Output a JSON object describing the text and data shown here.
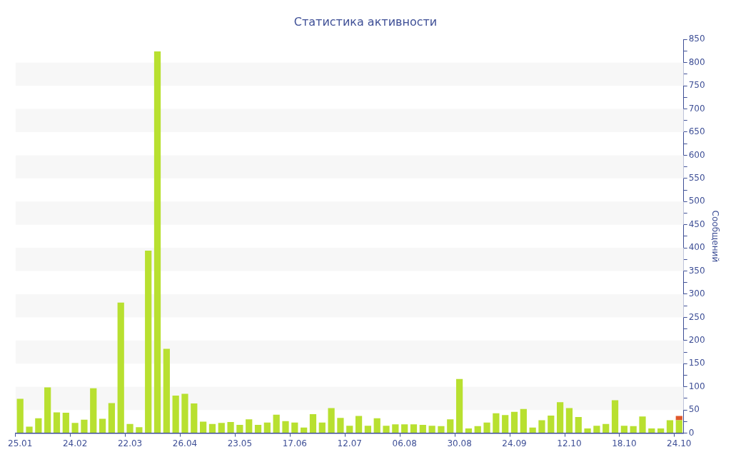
{
  "chart_data": {
    "type": "bar",
    "title": "Статистика активности",
    "ylabel": "Сообщений",
    "stacked": true,
    "legend": false,
    "bands": [
      {
        "axis": "y",
        "from": 50,
        "to": 100,
        "color": "#f7f7f7"
      },
      {
        "axis": "y",
        "from": 150,
        "to": 200,
        "color": "#f7f7f7"
      },
      {
        "axis": "y",
        "from": 250,
        "to": 300,
        "color": "#f7f7f7"
      },
      {
        "axis": "y",
        "from": 350,
        "to": 400,
        "color": "#f7f7f7"
      },
      {
        "axis": "y",
        "from": 450,
        "to": 500,
        "color": "#f7f7f7"
      },
      {
        "axis": "y",
        "from": 550,
        "to": 600,
        "color": "#f7f7f7"
      },
      {
        "axis": "y",
        "from": 650,
        "to": 700,
        "color": "#f7f7f7"
      },
      {
        "axis": "y",
        "from": 750,
        "to": 800,
        "color": "#f7f7f7"
      }
    ],
    "categories": [
      "25.01",
      null,
      null,
      null,
      null,
      null,
      "24.02",
      null,
      null,
      null,
      null,
      null,
      "22.03",
      null,
      null,
      null,
      null,
      null,
      "26.04",
      null,
      null,
      null,
      null,
      null,
      "23.05",
      null,
      null,
      null,
      null,
      null,
      "17.06",
      null,
      null,
      null,
      null,
      null,
      "12.07",
      null,
      null,
      null,
      null,
      null,
      "06.08",
      null,
      null,
      null,
      null,
      null,
      "30.08",
      null,
      null,
      null,
      null,
      null,
      "24.09",
      null,
      null,
      null,
      null,
      null,
      "12.10",
      null,
      null,
      null,
      null,
      null,
      "18.10",
      null,
      null,
      null,
      null,
      null,
      "24.10"
    ],
    "ylim": [
      0,
      850
    ],
    "yticks": [
      0,
      {
        "value": 25,
        "label": null
      },
      50,
      {
        "value": 75,
        "label": null
      },
      100,
      {
        "value": 125,
        "label": null
      },
      150,
      {
        "value": 175,
        "label": null
      },
      200,
      {
        "value": 225,
        "label": null
      },
      250,
      {
        "value": 275,
        "label": null
      },
      300,
      {
        "value": 325,
        "label": null
      },
      350,
      {
        "value": 375,
        "label": null
      },
      400,
      {
        "value": 425,
        "label": null
      },
      450,
      {
        "value": 475,
        "label": null
      },
      500,
      {
        "value": 525,
        "label": null
      },
      550,
      {
        "value": 575,
        "label": null
      },
      600,
      {
        "value": 625,
        "label": null
      },
      650,
      {
        "value": 675,
        "label": null
      },
      700,
      {
        "value": 725,
        "label": null
      },
      750,
      {
        "value": 775,
        "label": null
      },
      800,
      {
        "value": 825,
        "label": null
      },
      850
    ],
    "series": [
      {
        "color": "#b8e030",
        "values": [
          74,
          14,
          32,
          99,
          45,
          44,
          22,
          29,
          97,
          31,
          65,
          282,
          20,
          13,
          394,
          824,
          182,
          81,
          85,
          64,
          25,
          20,
          22,
          24,
          18,
          30,
          18,
          23,
          40,
          26,
          23,
          12,
          41,
          23,
          54,
          33,
          16,
          37,
          16,
          32,
          16,
          19,
          19,
          19,
          18,
          16,
          15,
          30,
          117,
          10,
          15,
          23,
          43,
          39,
          46,
          52,
          12,
          28,
          38,
          67,
          54,
          35,
          10,
          16,
          20,
          71,
          16,
          15,
          36,
          10,
          10,
          28,
          28
        ]
      },
      {
        "color": "#e0582c",
        "values": [
          null,
          null,
          null,
          null,
          null,
          null,
          null,
          null,
          null,
          null,
          null,
          null,
          null,
          null,
          null,
          null,
          null,
          null,
          null,
          null,
          null,
          null,
          null,
          null,
          null,
          null,
          null,
          null,
          null,
          null,
          null,
          null,
          null,
          null,
          null,
          null,
          null,
          null,
          null,
          null,
          null,
          null,
          null,
          null,
          null,
          null,
          null,
          null,
          null,
          null,
          null,
          null,
          null,
          null,
          null,
          null,
          null,
          null,
          null,
          null,
          null,
          null,
          null,
          null,
          null,
          null,
          null,
          null,
          null,
          null,
          null,
          null,
          9
        ]
      }
    ]
  }
}
